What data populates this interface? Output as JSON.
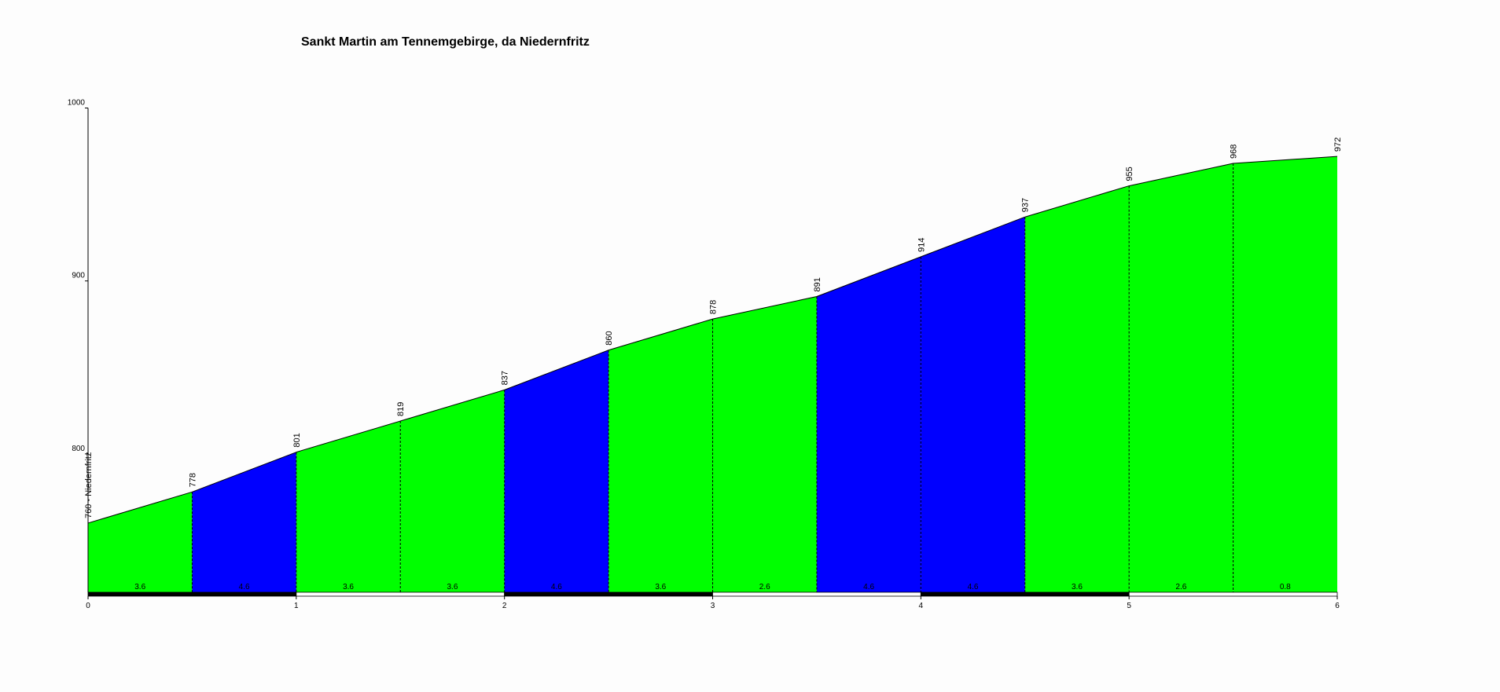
{
  "chart_data": {
    "type": "area",
    "title": "Sankt Martin am Tennemgebirge, da Niedernfritz",
    "x": [
      0,
      0.5,
      1,
      1.5,
      2,
      2.5,
      3,
      3.5,
      4,
      4.5,
      5,
      5.5,
      6
    ],
    "values": [
      760,
      778,
      801,
      819,
      837,
      860,
      878,
      891,
      914,
      937,
      955,
      968,
      972
    ],
    "value_labels": [
      "760 - Niedernfritz",
      "778",
      "801",
      "819",
      "837",
      "860",
      "878",
      "891",
      "914",
      "937",
      "955",
      "968",
      "972"
    ],
    "segments": {
      "values": [
        3.6,
        4.6,
        3.6,
        3.6,
        4.6,
        3.6,
        2.6,
        4.6,
        4.6,
        3.6,
        2.6,
        0.8
      ],
      "colors": [
        "#00ff00",
        "#0000ff",
        "#00ff00",
        "#00ff00",
        "#0000ff",
        "#00ff00",
        "#00ff00",
        "#0000ff",
        "#0000ff",
        "#00ff00",
        "#00ff00",
        "#00ff00"
      ]
    },
    "xlim": [
      0,
      6
    ],
    "xticks": [
      0,
      1,
      2,
      3,
      4,
      5,
      6
    ],
    "ylim": [
      720,
      1000
    ],
    "yticks": [
      800,
      900,
      1000
    ]
  }
}
